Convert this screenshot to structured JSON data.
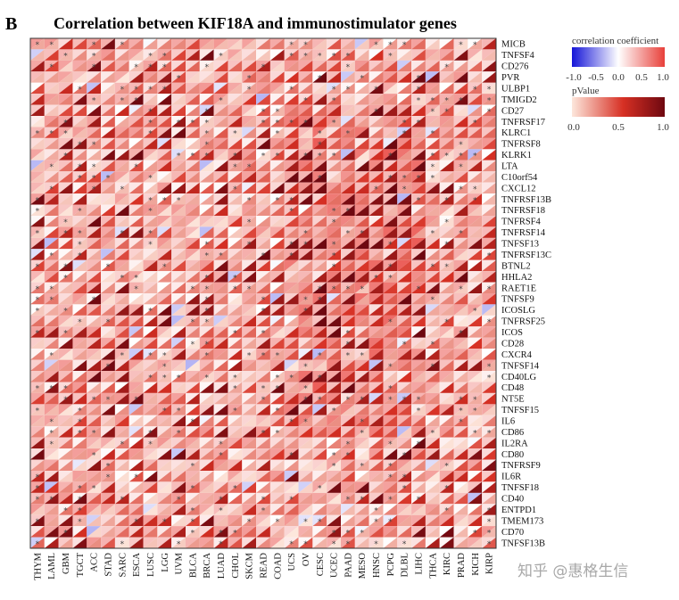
{
  "panel_letter": "B",
  "chart_data": {
    "type": "heatmap",
    "title": "Correlation between KIF18A and immunostimulator genes",
    "columns": [
      "THYM",
      "LAML",
      "GBM",
      "TGCT",
      "ACC",
      "STAD",
      "SARC",
      "ESCA",
      "LUSC",
      "LGG",
      "UVM",
      "BLCA",
      "BRCA",
      "LUAD",
      "CHOL",
      "SKCM",
      "READ",
      "COAD",
      "UCS",
      "OV",
      "CESC",
      "UCEC",
      "PAAD",
      "MESO",
      "HNSC",
      "PCPG",
      "DLBL",
      "LIHC",
      "THCA",
      "KIRC",
      "PRAD",
      "KICH",
      "KIRP"
    ],
    "rows": [
      "MICB",
      "TNFSF4",
      "CD276",
      "PVR",
      "ULBP1",
      "TMIGD2",
      "CD27",
      "TNFRSF17",
      "KLRC1",
      "TNFRSF8",
      "KLRK1",
      "LTA",
      "C10orf54",
      "CXCL12",
      "TNFRSF13B",
      "TNFRSF18",
      "TNFRSF4",
      "TNFRSF14",
      "TNFSF13",
      "TNFRSF13C",
      "BTNL2",
      "HHLA2",
      "RAET1E",
      "TNFSF9",
      "ICOSLG",
      "TNFRSF25",
      "ICOS",
      "CD28",
      "CXCR4",
      "TNFSF14",
      "CD40LG",
      "CD48",
      "NT5E",
      "TNFSF15",
      "IL6",
      "CD86",
      "IL2RA",
      "CD80",
      "TNFRSF9",
      "IL6R",
      "TNFSF18",
      "CD40",
      "ENTPD1",
      "TMEM173",
      "CD70",
      "TNFSF13B"
    ],
    "cell_encoding": "upper-left triangle = correlation coefficient, lower-right triangle = pValue, * = significant",
    "legend": {
      "correlation": {
        "title": "correlation coefficient",
        "ticks": [
          "-1.0",
          "-0.5",
          "0.0",
          "0.5",
          "1.0"
        ],
        "range": [
          -1,
          1
        ],
        "colors": [
          "#2a2ae0",
          "#ffffff",
          "#e8403a"
        ]
      },
      "pvalue": {
        "title": "pValue",
        "ticks": [
          "0.0",
          "0.5",
          "1.0"
        ],
        "range": [
          0,
          1
        ],
        "colors": [
          "#fde7dc",
          "#d73024",
          "#7a0b12"
        ]
      }
    }
  },
  "watermark": "知乎 @惠格生信"
}
